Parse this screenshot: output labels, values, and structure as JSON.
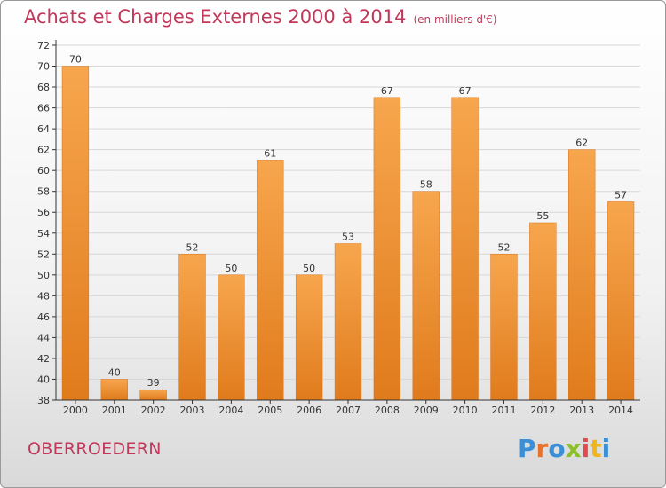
{
  "title": "Achats et Charges Externes 2000 à 2014",
  "subtitle": "(en milliers d'€)",
  "commune": "OBERROEDERN",
  "logo": {
    "text": "Proxiti",
    "colors": [
      "#3a8fd6",
      "#e8722a",
      "#3a8fd6",
      "#8bbf2a",
      "#e14b4b",
      "#f0b51e",
      "#3a8fd6"
    ]
  },
  "colors": {
    "title": "#c0395b",
    "bar_light": "#f7a64e",
    "bar_dark": "#e07b1c",
    "grid": "#d7d7d7",
    "axis": "#333333"
  },
  "chart_data": {
    "type": "bar",
    "categories": [
      "2000",
      "2001",
      "2002",
      "2003",
      "2004",
      "2005",
      "2006",
      "2007",
      "2008",
      "2009",
      "2010",
      "2011",
      "2012",
      "2013",
      "2014"
    ],
    "values": [
      70,
      40,
      39,
      52,
      50,
      61,
      50,
      53,
      67,
      58,
      67,
      52,
      55,
      62,
      57
    ],
    "ylim": [
      38,
      72
    ],
    "yticks": [
      38,
      40,
      42,
      44,
      46,
      48,
      50,
      52,
      54,
      56,
      58,
      60,
      62,
      64,
      66,
      68,
      70,
      72
    ],
    "grid": true,
    "legend": "none"
  }
}
